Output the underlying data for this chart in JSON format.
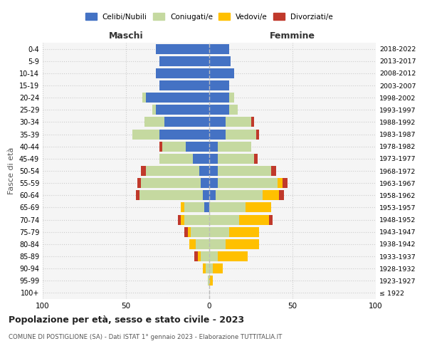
{
  "age_groups": [
    "100+",
    "95-99",
    "90-94",
    "85-89",
    "80-84",
    "75-79",
    "70-74",
    "65-69",
    "60-64",
    "55-59",
    "50-54",
    "45-49",
    "40-44",
    "35-39",
    "30-34",
    "25-29",
    "20-24",
    "15-19",
    "10-14",
    "5-9",
    "0-4"
  ],
  "birth_years": [
    "≤ 1922",
    "1923-1927",
    "1928-1932",
    "1933-1937",
    "1938-1942",
    "1943-1947",
    "1948-1952",
    "1953-1957",
    "1958-1962",
    "1963-1967",
    "1968-1972",
    "1973-1977",
    "1978-1982",
    "1983-1987",
    "1988-1992",
    "1993-1997",
    "1998-2002",
    "2003-2007",
    "2008-2012",
    "2013-2017",
    "2018-2022"
  ],
  "maschi": {
    "celibi": [
      0,
      0,
      0,
      0,
      0,
      0,
      0,
      3,
      4,
      5,
      6,
      10,
      14,
      30,
      27,
      32,
      38,
      30,
      32,
      30,
      32
    ],
    "coniugati": [
      0,
      1,
      2,
      5,
      8,
      11,
      15,
      12,
      38,
      36,
      32,
      20,
      14,
      16,
      12,
      2,
      2,
      0,
      0,
      0,
      0
    ],
    "vedovi": [
      0,
      0,
      2,
      2,
      4,
      2,
      2,
      2,
      0,
      0,
      0,
      0,
      0,
      0,
      0,
      0,
      0,
      0,
      0,
      0,
      0
    ],
    "divorziati": [
      0,
      0,
      0,
      2,
      0,
      2,
      2,
      0,
      2,
      2,
      3,
      0,
      2,
      0,
      0,
      0,
      0,
      0,
      0,
      0,
      0
    ]
  },
  "femmine": {
    "nubili": [
      0,
      0,
      0,
      0,
      0,
      0,
      0,
      0,
      4,
      5,
      5,
      5,
      5,
      10,
      10,
      12,
      12,
      12,
      15,
      13,
      12
    ],
    "coniugate": [
      0,
      0,
      2,
      5,
      10,
      12,
      18,
      22,
      28,
      36,
      32,
      22,
      20,
      18,
      15,
      5,
      3,
      0,
      0,
      0,
      0
    ],
    "vedove": [
      0,
      2,
      6,
      18,
      20,
      18,
      18,
      15,
      10,
      3,
      0,
      0,
      0,
      0,
      0,
      0,
      0,
      0,
      0,
      0,
      0
    ],
    "divorziate": [
      0,
      0,
      0,
      0,
      0,
      0,
      2,
      0,
      3,
      3,
      3,
      2,
      0,
      2,
      2,
      0,
      0,
      0,
      0,
      0,
      0
    ]
  },
  "color_celibi": "#4472c4",
  "color_coniugati": "#c5d9a0",
  "color_vedovi": "#ffc000",
  "color_divorziati": "#c0392b",
  "xlim": 100,
  "title": "Popolazione per età, sesso e stato civile - 2023",
  "subtitle": "COMUNE DI POSTIGLIONE (SA) - Dati ISTAT 1° gennaio 2023 - Elaborazione TUTTITALIA.IT",
  "ylabel_left": "Fasce di età",
  "xlabel_maschi": "Maschi",
  "xlabel_femmine": "Femmine",
  "bg_color": "#f5f5f5",
  "grid_color": "#cccccc",
  "legend_labels": [
    "Celibi/Nubili",
    "Coniugati/e",
    "Vedovi/e",
    "Divorziati/e"
  ]
}
